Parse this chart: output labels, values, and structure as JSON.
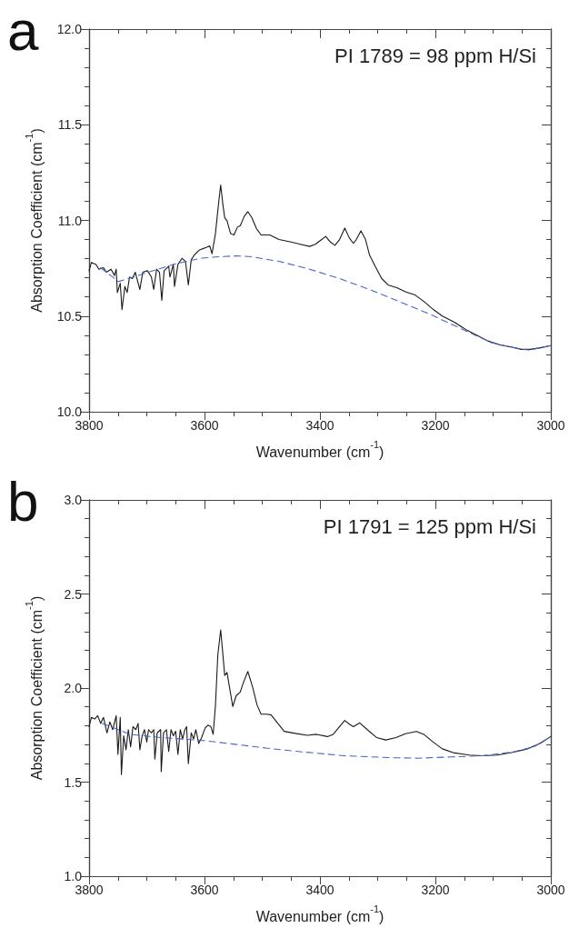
{
  "chart_data": [
    {
      "type": "line",
      "xlabel": "Wavenumber (cm$^{-1}$)",
      "ylabel": "Absorption Coefficient (cm$^{-1}$)",
      "annotations": [
        "a",
        "PI 1789 = 98 ppm H/Si"
      ],
      "xlim": [
        3800,
        3000
      ],
      "xticks": [
        3800,
        {
          "value": 3750,
          "label": null
        },
        {
          "value": 3700,
          "label": null
        },
        {
          "value": 3650,
          "label": null
        },
        3600,
        {
          "value": 3550,
          "label": null
        },
        {
          "value": 3500,
          "label": null
        },
        {
          "value": 3450,
          "label": null
        },
        3400,
        {
          "value": 3350,
          "label": null
        },
        {
          "value": 3300,
          "label": null
        },
        {
          "value": 3250,
          "label": null
        },
        3200,
        {
          "value": 3150,
          "label": null
        },
        {
          "value": 3100,
          "label": null
        },
        {
          "value": 3050,
          "label": null
        },
        3000
      ],
      "ylim": [
        10,
        12
      ],
      "yticks": [
        {
          "value": 10,
          "label": "10.0"
        },
        {
          "value": 10.1,
          "label": null
        },
        {
          "value": 10.2,
          "label": null
        },
        {
          "value": 10.3,
          "label": null
        },
        {
          "value": 10.4,
          "label": null
        },
        10.5,
        {
          "value": 10.6,
          "label": null
        },
        {
          "value": 10.7,
          "label": null
        },
        {
          "value": 10.8,
          "label": null
        },
        {
          "value": 10.9,
          "label": null
        },
        {
          "value": 11,
          "label": "11.0"
        },
        {
          "value": 11.1,
          "label": null
        },
        {
          "value": 11.2,
          "label": null
        },
        {
          "value": 11.3,
          "label": null
        },
        {
          "value": 11.4,
          "label": null
        },
        11.5,
        {
          "value": 11.6,
          "label": null
        },
        {
          "value": 11.7,
          "label": null
        },
        {
          "value": 11.8,
          "label": null
        },
        {
          "value": 11.9,
          "label": null
        },
        {
          "value": 12,
          "label": "12.0"
        }
      ],
      "series": [
        {
          "color": "#1a1a1a",
          "line_style": "solid",
          "x": [
            3800,
            3796,
            3788,
            3783,
            3775,
            3770,
            3762,
            3756,
            3753,
            3751,
            3746,
            3743,
            3738,
            3734,
            3730,
            3725,
            3720,
            3712,
            3707,
            3699,
            3692,
            3688,
            3683,
            3678,
            3674,
            3670,
            3662,
            3660,
            3654,
            3652,
            3646,
            3639,
            3633,
            3628,
            3623,
            3618,
            3610,
            3604,
            3597,
            3591,
            3587,
            3581,
            3576,
            3572,
            3568,
            3565,
            3561,
            3555,
            3549,
            3543,
            3538,
            3531,
            3525,
            3518,
            3510,
            3502,
            3487,
            3471,
            3450,
            3434,
            3418,
            3408,
            3397,
            3390,
            3382,
            3374,
            3366,
            3357,
            3349,
            3342,
            3337,
            3329,
            3321,
            3314,
            3303,
            3293,
            3282,
            3266,
            3251,
            3235,
            3219,
            3203,
            3188,
            3167,
            3146,
            3130,
            3109,
            3088,
            3067,
            3051,
            3036,
            3020,
            3000
          ],
          "values": [
            10.737,
            10.78,
            10.77,
            10.745,
            10.753,
            10.729,
            10.745,
            10.712,
            10.745,
            10.623,
            10.672,
            10.533,
            10.655,
            10.623,
            10.704,
            10.696,
            10.729,
            10.639,
            10.729,
            10.737,
            10.704,
            10.639,
            10.745,
            10.729,
            10.582,
            10.737,
            10.761,
            10.704,
            10.77,
            10.655,
            10.77,
            10.802,
            10.786,
            10.663,
            10.794,
            10.818,
            10.843,
            10.851,
            10.859,
            10.867,
            10.826,
            10.932,
            11.079,
            11.185,
            11.079,
            11.014,
            10.998,
            10.932,
            10.924,
            10.965,
            10.973,
            11.022,
            11.046,
            11.014,
            10.957,
            10.924,
            10.924,
            10.9,
            10.887,
            10.875,
            10.864,
            10.875,
            10.9,
            10.916,
            10.887,
            10.87,
            10.9,
            10.96,
            10.908,
            10.88,
            10.9,
            10.945,
            10.9,
            10.818,
            10.753,
            10.696,
            10.663,
            10.647,
            10.626,
            10.61,
            10.574,
            10.533,
            10.5,
            10.468,
            10.427,
            10.403,
            10.37,
            10.349,
            10.337,
            10.326,
            10.326,
            10.333,
            10.346
          ]
        },
        {
          "color": "#4466cc",
          "line_style": "dashed",
          "x": [
            3780,
            3749,
            3707,
            3654,
            3607,
            3576,
            3544,
            3518,
            3471,
            3418,
            3366,
            3314,
            3261,
            3209,
            3156,
            3104,
            3051,
            3036,
            3000
          ],
          "values": [
            10.753,
            10.68,
            10.72,
            10.77,
            10.802,
            10.81,
            10.815,
            10.81,
            10.786,
            10.745,
            10.696,
            10.639,
            10.574,
            10.509,
            10.435,
            10.362,
            10.326,
            10.323,
            10.346
          ]
        }
      ]
    },
    {
      "type": "line",
      "xlabel": "Wavenumber (cm$^{-1}$)",
      "ylabel": "Absorption Coefficient (cm$^{-1}$)",
      "annotations": [
        "b",
        "PI 1791 = 125 ppm H/Si"
      ],
      "xlim": [
        3800,
        3000
      ],
      "xticks": [
        3800,
        {
          "value": 3750,
          "label": null
        },
        {
          "value": 3700,
          "label": null
        },
        {
          "value": 3650,
          "label": null
        },
        3600,
        {
          "value": 3550,
          "label": null
        },
        {
          "value": 3500,
          "label": null
        },
        {
          "value": 3450,
          "label": null
        },
        3400,
        {
          "value": 3350,
          "label": null
        },
        {
          "value": 3300,
          "label": null
        },
        {
          "value": 3250,
          "label": null
        },
        3200,
        {
          "value": 3150,
          "label": null
        },
        {
          "value": 3100,
          "label": null
        },
        {
          "value": 3050,
          "label": null
        },
        3000
      ],
      "ylim": [
        1,
        3
      ],
      "yticks": [
        {
          "value": 1,
          "label": "1.0"
        },
        {
          "value": 1.1,
          "label": null
        },
        {
          "value": 1.2,
          "label": null
        },
        {
          "value": 1.3,
          "label": null
        },
        {
          "value": 1.4,
          "label": null
        },
        1.5,
        {
          "value": 1.6,
          "label": null
        },
        {
          "value": 1.7,
          "label": null
        },
        {
          "value": 1.8,
          "label": null
        },
        {
          "value": 1.9,
          "label": null
        },
        {
          "value": 2,
          "label": "2.0"
        },
        {
          "value": 2.1,
          "label": null
        },
        {
          "value": 2.2,
          "label": null
        },
        {
          "value": 2.3,
          "label": null
        },
        {
          "value": 2.4,
          "label": null
        },
        2.5,
        {
          "value": 2.6,
          "label": null
        },
        {
          "value": 2.7,
          "label": null
        },
        {
          "value": 2.8,
          "label": null
        },
        {
          "value": 2.9,
          "label": null
        },
        {
          "value": 3,
          "label": "3.0"
        }
      ],
      "series": [
        {
          "color": "#1a1a1a",
          "line_style": "solid",
          "x": [
            3800,
            3796,
            3790,
            3785,
            3780,
            3775,
            3769,
            3764,
            3759,
            3753,
            3750,
            3746,
            3744,
            3740,
            3736,
            3732,
            3728,
            3724,
            3719,
            3715,
            3712,
            3708,
            3704,
            3700,
            3697,
            3692,
            3688,
            3686,
            3682,
            3676,
            3675,
            3671,
            3666,
            3662,
            3658,
            3654,
            3650,
            3646,
            3642,
            3638,
            3634,
            3631,
            3628,
            3623,
            3619,
            3615,
            3610,
            3605,
            3599,
            3594,
            3589,
            3585,
            3581,
            3577,
            3572,
            3569,
            3565,
            3561,
            3557,
            3551,
            3545,
            3538,
            3533,
            3525,
            3517,
            3509,
            3502,
            3493,
            3485,
            3477,
            3462,
            3443,
            3422,
            3406,
            3387,
            3377,
            3366,
            3357,
            3349,
            3342,
            3331,
            3318,
            3302,
            3286,
            3268,
            3252,
            3233,
            3220,
            3204,
            3188,
            3167,
            3141,
            3119,
            3093,
            3066,
            3040,
            3019,
            3000
          ],
          "values": [
            1.795,
            1.844,
            1.836,
            1.853,
            1.812,
            1.844,
            1.762,
            1.82,
            1.779,
            1.853,
            1.647,
            1.844,
            1.54,
            1.746,
            1.672,
            1.779,
            1.688,
            1.795,
            1.779,
            1.812,
            1.672,
            1.746,
            1.779,
            1.713,
            1.779,
            1.762,
            1.779,
            1.622,
            1.762,
            1.779,
            1.556,
            1.762,
            1.779,
            1.663,
            1.779,
            1.746,
            1.77,
            1.647,
            1.779,
            1.729,
            1.779,
            1.795,
            1.598,
            1.762,
            1.729,
            1.779,
            1.705,
            1.737,
            1.787,
            1.803,
            1.795,
            1.754,
            1.91,
            2.174,
            2.309,
            2.207,
            2.067,
            2.083,
            2.009,
            1.902,
            1.96,
            1.979,
            2.026,
            2.088,
            2.009,
            1.91,
            1.861,
            1.861,
            1.858,
            1.828,
            1.77,
            1.759,
            1.749,
            1.754,
            1.742,
            1.754,
            1.795,
            1.828,
            1.808,
            1.795,
            1.815,
            1.779,
            1.737,
            1.724,
            1.737,
            1.757,
            1.769,
            1.754,
            1.713,
            1.677,
            1.655,
            1.644,
            1.64,
            1.644,
            1.658,
            1.677,
            1.705,
            1.742
          ]
        },
        {
          "color": "#4466cc",
          "line_style": "dashed",
          "x": [
            3777,
            3729,
            3676,
            3602,
            3544,
            3491,
            3438,
            3358,
            3279,
            3231,
            3172,
            3119,
            3066,
            3029,
            3000
          ],
          "values": [
            1.812,
            1.754,
            1.737,
            1.721,
            1.7,
            1.68,
            1.663,
            1.64,
            1.63,
            1.627,
            1.634,
            1.64,
            1.66,
            1.688,
            1.742
          ]
        }
      ]
    }
  ]
}
